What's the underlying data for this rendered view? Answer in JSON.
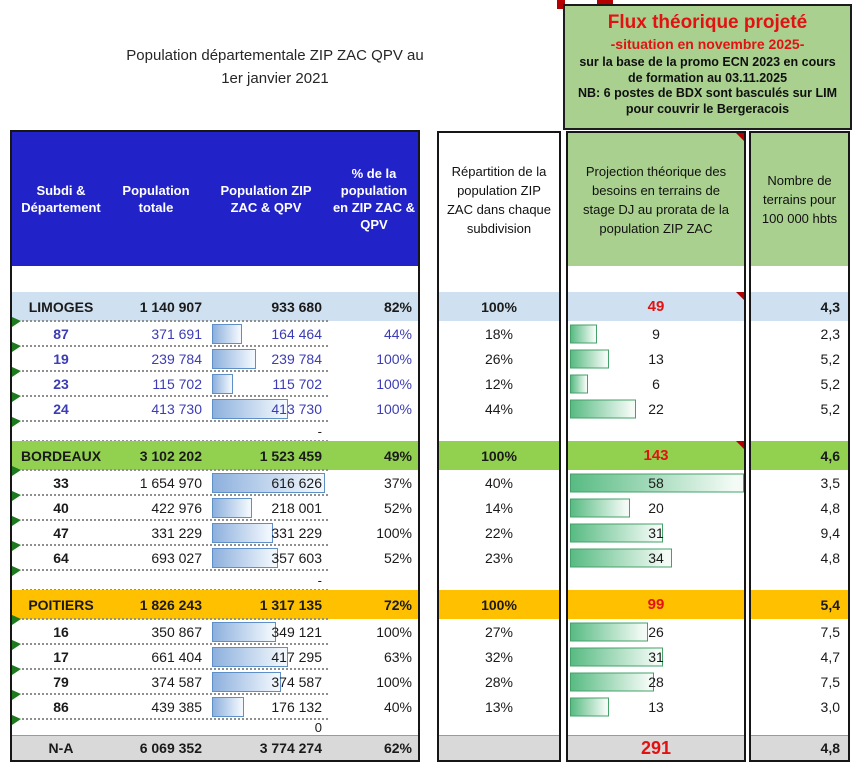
{
  "page_title": {
    "line1": "Population départementale ZIP ZAC QPV au",
    "line2": "1er janvier 2021"
  },
  "flux_box": {
    "title": "Flux théorique projeté",
    "subtitle": "-situation en novembre 2025-",
    "body": "sur la base de la promo ECN 2023 en cours\nde formation au 03.11.2025\nNB: 6 postes de BDX sont basculés sur LIM\npour couvrir le Bergeracois"
  },
  "headers": {
    "left": [
      "Subdi &\nDépartement",
      "Population\ntotale",
      "Population ZIP\nZAC & QPV",
      "% de la\npopulation\nen ZIP ZAC &\nQPV"
    ],
    "repartition": "Répartition de la\npopulation ZIP\nZAC dans chaque\nsubdivision",
    "projection": "Projection théorique des\nbesoins en terrains de\nstage DJ au prorata de la\npopulation ZIP ZAC",
    "terrains": "Nombre de\nterrains pour\n100 000 hbts"
  },
  "rows": [
    {
      "kind": "group",
      "band": "limoges",
      "label": "LIMOGES",
      "total": "1 140 907",
      "zip": "933 680",
      "pct": "82%",
      "rep": "100%",
      "proj": "49",
      "flag": true,
      "terr": "4,3"
    },
    {
      "kind": "detail",
      "ink": "blue",
      "label": "87",
      "total": "371 691",
      "zip": "164 464",
      "zipv": 164464,
      "pct": "44%",
      "rep": "18%",
      "proj": "9",
      "projv": 9,
      "terr": "2,3"
    },
    {
      "kind": "detail",
      "ink": "blue",
      "label": "19",
      "total": "239 784",
      "zip": "239 784",
      "zipv": 239784,
      "pct": "100%",
      "rep": "26%",
      "proj": "13",
      "projv": 13,
      "terr": "5,2"
    },
    {
      "kind": "detail",
      "ink": "blue",
      "label": "23",
      "total": "115 702",
      "zip": "115 702",
      "zipv": 115702,
      "pct": "100%",
      "rep": "12%",
      "proj": "6",
      "projv": 6,
      "terr": "5,2"
    },
    {
      "kind": "detail",
      "ink": "blue",
      "label": "24",
      "total": "413 730",
      "zip": "413 730",
      "zipv": 413730,
      "pct": "100%",
      "rep": "44%",
      "proj": "22",
      "projv": 22,
      "terr": "5,2"
    },
    {
      "kind": "dash",
      "zip": "-"
    },
    {
      "kind": "group",
      "band": "bordeaux",
      "label": "BORDEAUX",
      "total": "3 102 202",
      "zip": "1 523 459",
      "pct": "49%",
      "rep": "100%",
      "proj": "143",
      "flag": true,
      "terr": "4,6"
    },
    {
      "kind": "detail",
      "ink": "black",
      "label": "33",
      "total": "1 654 970",
      "zip": "616 626",
      "zipv": 616626,
      "pct": "37%",
      "rep": "40%",
      "proj": "58",
      "projv": 58,
      "terr": "3,5"
    },
    {
      "kind": "detail",
      "ink": "black",
      "label": "40",
      "total": "422 976",
      "zip": "218 001",
      "zipv": 218001,
      "pct": "52%",
      "rep": "14%",
      "proj": "20",
      "projv": 20,
      "terr": "4,8"
    },
    {
      "kind": "detail",
      "ink": "black",
      "label": "47",
      "total": "331 229",
      "zip": "331 229",
      "zipv": 331229,
      "pct": "100%",
      "rep": "22%",
      "proj": "31",
      "projv": 31,
      "terr": "9,4"
    },
    {
      "kind": "detail",
      "ink": "black",
      "label": "64",
      "total": "693 027",
      "zip": "357 603",
      "zipv": 357603,
      "pct": "52%",
      "rep": "23%",
      "proj": "34",
      "projv": 34,
      "terr": "4,8"
    },
    {
      "kind": "dash",
      "zip": "-"
    },
    {
      "kind": "group",
      "band": "poitiers",
      "label": "POITIERS",
      "total": "1 826 243",
      "zip": "1 317 135",
      "pct": "72%",
      "rep": "100%",
      "proj": "99",
      "terr": "5,4"
    },
    {
      "kind": "detail",
      "ink": "black",
      "label": "16",
      "total": "350 867",
      "zip": "349 121",
      "zipv": 349121,
      "pct": "100%",
      "rep": "27%",
      "proj": "26",
      "projv": 26,
      "terr": "7,5"
    },
    {
      "kind": "detail",
      "ink": "black",
      "label": "17",
      "total": "661 404",
      "zip": "417 295",
      "zipv": 417295,
      "pct": "63%",
      "rep": "32%",
      "proj": "31",
      "projv": 31,
      "terr": "4,7"
    },
    {
      "kind": "detail",
      "ink": "black",
      "label": "79",
      "total": "374 587",
      "zip": "374 587",
      "zipv": 374587,
      "pct": "100%",
      "rep": "28%",
      "proj": "28",
      "projv": 28,
      "terr": "7,5"
    },
    {
      "kind": "detail",
      "ink": "black",
      "label": "86",
      "total": "439 385",
      "zip": "176 132",
      "zipv": 176132,
      "pct": "40%",
      "rep": "13%",
      "proj": "13",
      "projv": 13,
      "terr": "3,0"
    },
    {
      "kind": "zero",
      "zip": "0"
    },
    {
      "kind": "total",
      "band": "total",
      "label": "N-A",
      "total": "6 069 352",
      "zip": "3 774 274",
      "pct": "62%",
      "rep": "",
      "proj": "291",
      "grand": true,
      "terr": "4,8"
    }
  ],
  "colors": {
    "header_blue": "#2123c8",
    "band_limoges": "#cfe0f0",
    "band_bordeaux": "#92d050",
    "band_poitiers": "#ffc000",
    "band_total": "#d9d9d9",
    "box_green": "#a9d08e",
    "red_accent": "#e31212",
    "ink_blue": "#3c3cb4",
    "bar_blue_start": "#8db0dd",
    "bar_blue_border": "#5f8fc7",
    "bar_green_start": "#58bb83",
    "bar_green_border": "#46a06a",
    "flag_red": "#b40000",
    "triangle_green": "#1f7a1f",
    "dotted_gray": "#8f8f8f"
  }
}
